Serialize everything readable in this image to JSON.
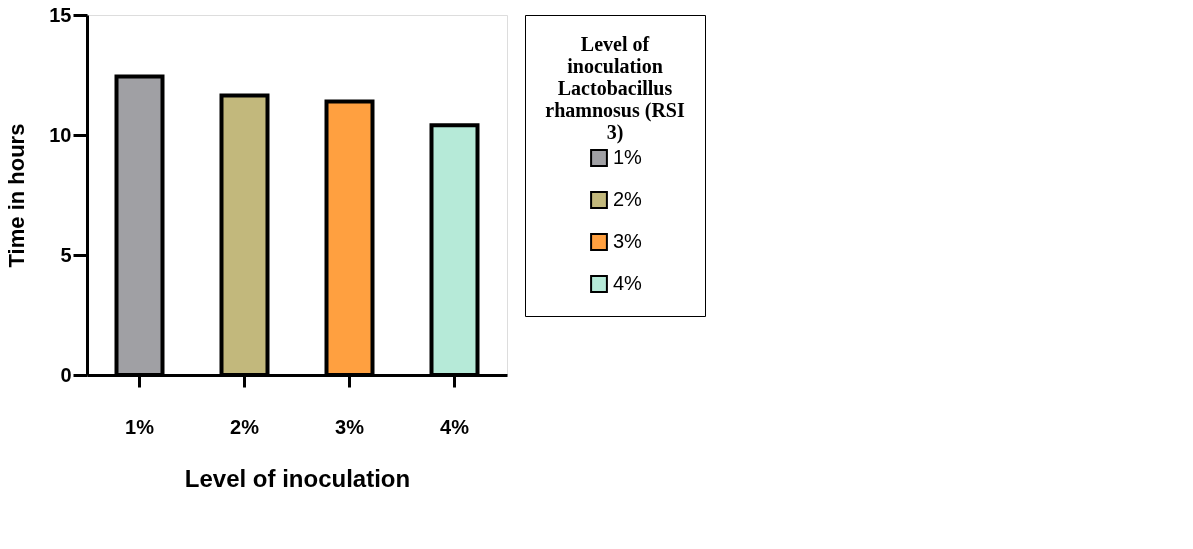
{
  "chart_data": {
    "type": "bar",
    "xlabel": "Level of inoculation",
    "ylabel": "Time in hours",
    "legend_title": "Level of inoculation Lactobacillus rhamnosus (RSI 3)",
    "categories": [
      "1%",
      "2%",
      "3%",
      "4%"
    ],
    "series": [
      {
        "name": "1%",
        "color": "#a0a0a4",
        "values": [
          12.44,
          null,
          null,
          null
        ]
      },
      {
        "name": "2%",
        "color": "#c2b87c",
        "values": [
          null,
          11.65,
          null,
          null
        ]
      },
      {
        "name": "3%",
        "color": "#ffa040",
        "values": [
          null,
          null,
          11.4,
          null
        ]
      },
      {
        "name": "4%",
        "color": "#b6ead8",
        "values": [
          null,
          null,
          null,
          10.41
        ]
      }
    ],
    "ylim": [
      0,
      15
    ],
    "yticks": [
      0,
      5,
      10,
      15
    ],
    "grid": false,
    "legend": "right"
  }
}
